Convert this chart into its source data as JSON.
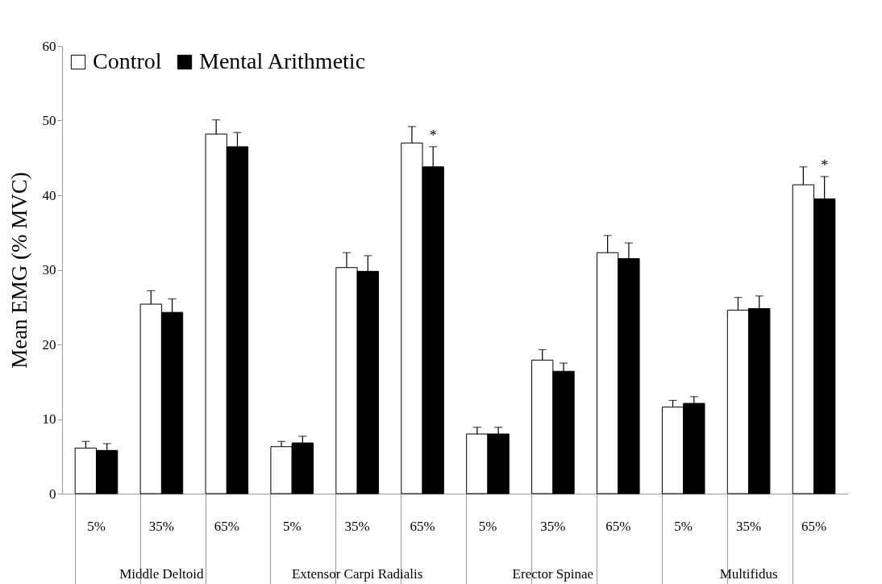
{
  "chart_data": {
    "type": "bar",
    "ylabel": "Mean EMG (% MVC)",
    "categories": [
      "5%",
      "35%",
      "65%",
      "5%",
      "35%",
      "65%",
      "5%",
      "35%",
      "65%",
      "5%",
      "35%",
      "65%"
    ],
    "series": [
      {
        "name": "Control",
        "color": "#ffffff",
        "values": [
          6.1,
          25.4,
          48.2,
          6.3,
          30.3,
          47.0,
          8.0,
          17.9,
          32.3,
          11.6,
          24.6,
          41.4
        ],
        "errors": [
          [
            6.1,
            7.0
          ],
          [
            25.4,
            27.2
          ],
          [
            48.2,
            50.1
          ],
          [
            6.3,
            7.0
          ],
          [
            30.3,
            32.3
          ],
          [
            47.0,
            49.2
          ],
          [
            8.0,
            8.9
          ],
          [
            17.9,
            19.3
          ],
          [
            32.3,
            34.6
          ],
          [
            11.6,
            12.5
          ],
          [
            24.6,
            26.3
          ],
          [
            41.4,
            43.8
          ]
        ]
      },
      {
        "name": "Mental Arithmetic",
        "color": "#000000",
        "values": [
          5.8,
          24.3,
          46.5,
          6.8,
          29.8,
          43.8,
          8.0,
          16.4,
          31.5,
          12.1,
          24.8,
          39.5
        ],
        "errors": [
          [
            5.8,
            6.7
          ],
          [
            24.3,
            26.1
          ],
          [
            46.5,
            48.4
          ],
          [
            6.8,
            7.7
          ],
          [
            29.8,
            31.9
          ],
          [
            43.8,
            46.5
          ],
          [
            8.0,
            8.9
          ],
          [
            16.4,
            17.5
          ],
          [
            31.5,
            33.6
          ],
          [
            12.1,
            13.0
          ],
          [
            24.8,
            26.5
          ],
          [
            39.5,
            42.5
          ]
        ],
        "value_labels": [
          null,
          null,
          null,
          null,
          null,
          "*",
          null,
          null,
          null,
          null,
          null,
          "*"
        ]
      }
    ],
    "annotations": [
      "Middle Deltoid",
      "Extensor Carpi Radialis",
      "Erector Spinae",
      "Multifidus"
    ],
    "ylim": [
      0,
      60
    ],
    "yticks": [
      0,
      10,
      20,
      30,
      40,
      50,
      60
    ],
    "grid": false,
    "legend": "top left"
  }
}
